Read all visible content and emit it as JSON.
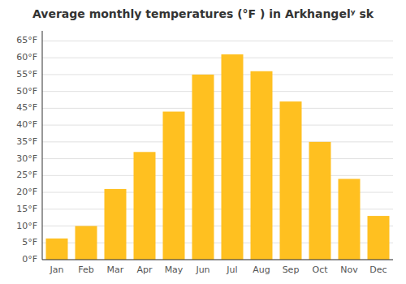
{
  "chart_data": {
    "type": "bar",
    "title": "Average monthly temperatures (°F ) in Arkhangelʸ sk",
    "categories": [
      "Jan",
      "Feb",
      "Mar",
      "Apr",
      "May",
      "Jun",
      "Jul",
      "Aug",
      "Sep",
      "Oct",
      "Nov",
      "Dec"
    ],
    "values": [
      6.3,
      10.0,
      21.0,
      32.0,
      44.0,
      55.0,
      61.0,
      56.0,
      47.0,
      35.0,
      24.0,
      13.0
    ],
    "color": "#FFC020",
    "ylim": [
      0,
      68
    ],
    "yticks": [
      {
        "value": 0,
        "label": "0°F"
      },
      {
        "value": 5,
        "label": "5°F"
      },
      {
        "value": 10,
        "label": "10°F"
      },
      {
        "value": 15,
        "label": "15°F"
      },
      {
        "value": 20,
        "label": "20°F"
      },
      {
        "value": 25,
        "label": "25°F"
      },
      {
        "value": 30,
        "label": "30°F"
      },
      {
        "value": 35,
        "label": "35°F"
      },
      {
        "value": 40,
        "label": "40°F"
      },
      {
        "value": 45,
        "label": "45°F"
      },
      {
        "value": 50,
        "label": "50°F"
      },
      {
        "value": 55,
        "label": "55°F"
      },
      {
        "value": 60,
        "label": "60°F"
      },
      {
        "value": 65,
        "label": "65°F"
      }
    ],
    "grid": true
  }
}
